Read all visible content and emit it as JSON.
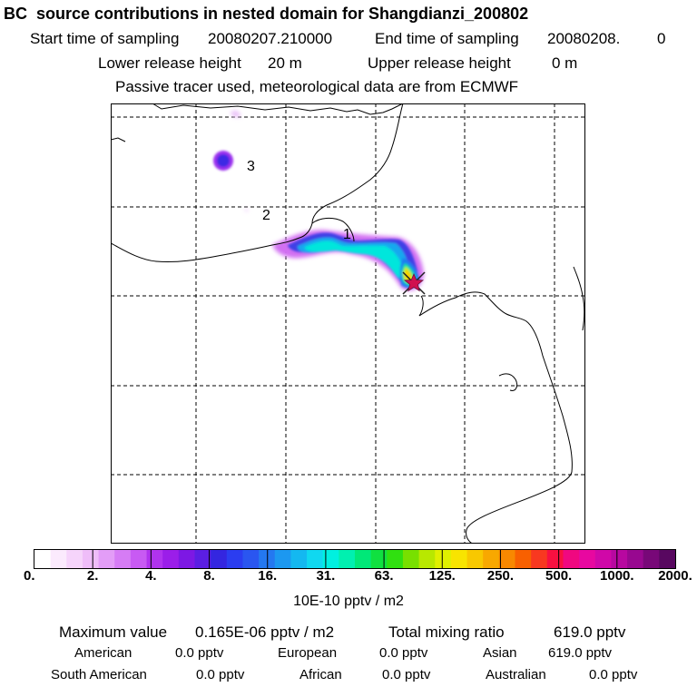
{
  "header": {
    "title": "BC  source contributions in nested domain for Shangdianzi_200802",
    "start_label": "Start time of sampling",
    "start_value": "20080207.210000",
    "end_label": "End time of sampling",
    "end_value": "20080208.",
    "end_hour": "0",
    "lower_label": "Lower release height",
    "lower_value": "20 m",
    "upper_label": "Upper release height",
    "upper_value": "0 m",
    "note": "Passive tracer used, meteorological data are from ECMWF"
  },
  "map": {
    "markers": [
      {
        "label": "1"
      },
      {
        "label": "2"
      },
      {
        "label": "3"
      }
    ],
    "receptor_symbol": "star",
    "colors": {
      "border": "#000000",
      "grid": "#000000",
      "receptor_fill": "#d01050",
      "receptor_outline": "#202020"
    }
  },
  "colorbar": {
    "colors": [
      "#ffffff",
      "#fbeafd",
      "#f6d4fb",
      "#efbdf9",
      "#e39df7",
      "#d67cf5",
      "#c85af3",
      "#b033ee",
      "#9b1ee9",
      "#7d18e4",
      "#5b1ee3",
      "#3426e0",
      "#2b3df0",
      "#2a56f0",
      "#2478f0",
      "#1c98f0",
      "#14b8f0",
      "#10d8f0",
      "#00f0e0",
      "#00f0b0",
      "#00e878",
      "#10e040",
      "#30e010",
      "#78e000",
      "#b8e800",
      "#e0f000",
      "#f8e400",
      "#f8c800",
      "#f8a800",
      "#f88800",
      "#f86000",
      "#f83820",
      "#f81040",
      "#f00880",
      "#e808a0",
      "#d008a8",
      "#b808a0",
      "#980890",
      "#780878",
      "#580860"
    ],
    "tick_labels": [
      "0.",
      "2.",
      "4.",
      "8.",
      "16.",
      "31.",
      "63.",
      "125.",
      "250.",
      "500.",
      "1000.",
      "2000."
    ],
    "unit": "10E-10 pptv / m2"
  },
  "summary": {
    "max_label": "Maximum value",
    "max_value": "0.165E-06 pptv / m2",
    "total_label": "Total mixing ratio",
    "total_value": "619.0 pptv",
    "regions": [
      {
        "name": "American",
        "value": "0.0 pptv"
      },
      {
        "name": "European",
        "value": "0.0 pptv"
      },
      {
        "name": "Asian",
        "value": "619.0 pptv"
      },
      {
        "name": "South American",
        "value": "0.0 pptv"
      },
      {
        "name": "African",
        "value": "0.0 pptv"
      },
      {
        "name": "Australian",
        "value": "0.0 pptv"
      }
    ]
  }
}
